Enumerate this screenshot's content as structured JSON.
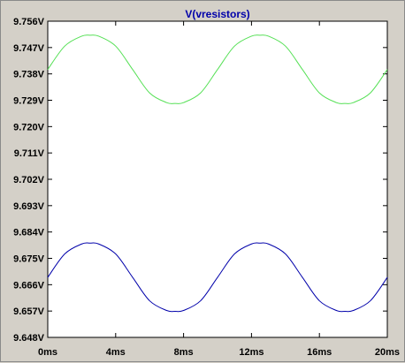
{
  "chart_data": {
    "type": "line",
    "title": "V(vresistors)",
    "title_color": "#0000aa",
    "background_color": "#ffffff",
    "frame_color": "#d4d0c8",
    "x_unit": "ms",
    "xlim": [
      0,
      20
    ],
    "x_ticks": [
      0,
      4,
      8,
      12,
      16,
      20
    ],
    "x_tick_labels": [
      "0ms",
      "4ms",
      "8ms",
      "12ms",
      "16ms",
      "20ms"
    ],
    "ylim": [
      9.648,
      9.756
    ],
    "y_ticks": [
      9.648,
      9.657,
      9.666,
      9.675,
      9.684,
      9.693,
      9.702,
      9.711,
      9.72,
      9.729,
      9.738,
      9.747,
      9.756
    ],
    "y_tick_labels": [
      "9.648V",
      "9.657V",
      "9.666V",
      "9.675V",
      "9.684V",
      "9.693V",
      "9.702V",
      "9.711V",
      "9.720V",
      "9.729V",
      "9.738V",
      "9.747V",
      "9.756V"
    ],
    "grid": false,
    "series": [
      {
        "color": "#55e055",
        "x": [
          0,
          1,
          2,
          2.5,
          3,
          4,
          5,
          6,
          7,
          7.5,
          8,
          9,
          10,
          11,
          12,
          12.5,
          13,
          14,
          15,
          16,
          17,
          17.5,
          18,
          19,
          20
        ],
        "values": [
          9.7395,
          9.7475,
          9.7509,
          9.7512,
          9.7509,
          9.7475,
          9.7395,
          9.7315,
          9.7282,
          9.7279,
          9.7282,
          9.7315,
          9.7395,
          9.7475,
          9.7509,
          9.7512,
          9.7509,
          9.7475,
          9.7395,
          9.7315,
          9.7282,
          9.7279,
          9.7282,
          9.7315,
          9.7395
        ]
      },
      {
        "color": "#0000aa",
        "x": [
          0,
          1,
          2,
          2.5,
          3,
          4,
          5,
          6,
          7,
          7.5,
          8,
          9,
          10,
          11,
          12,
          12.5,
          13,
          14,
          15,
          16,
          17,
          17.5,
          18,
          19,
          20
        ],
        "values": [
          9.6685,
          9.6765,
          9.6799,
          9.6802,
          9.6799,
          9.6765,
          9.6685,
          9.6605,
          9.6572,
          9.6569,
          9.6572,
          9.6605,
          9.6685,
          9.6765,
          9.6799,
          9.6802,
          9.6799,
          9.6765,
          9.6685,
          9.6605,
          9.6572,
          9.6569,
          9.6572,
          9.6605,
          9.6685
        ]
      }
    ]
  }
}
